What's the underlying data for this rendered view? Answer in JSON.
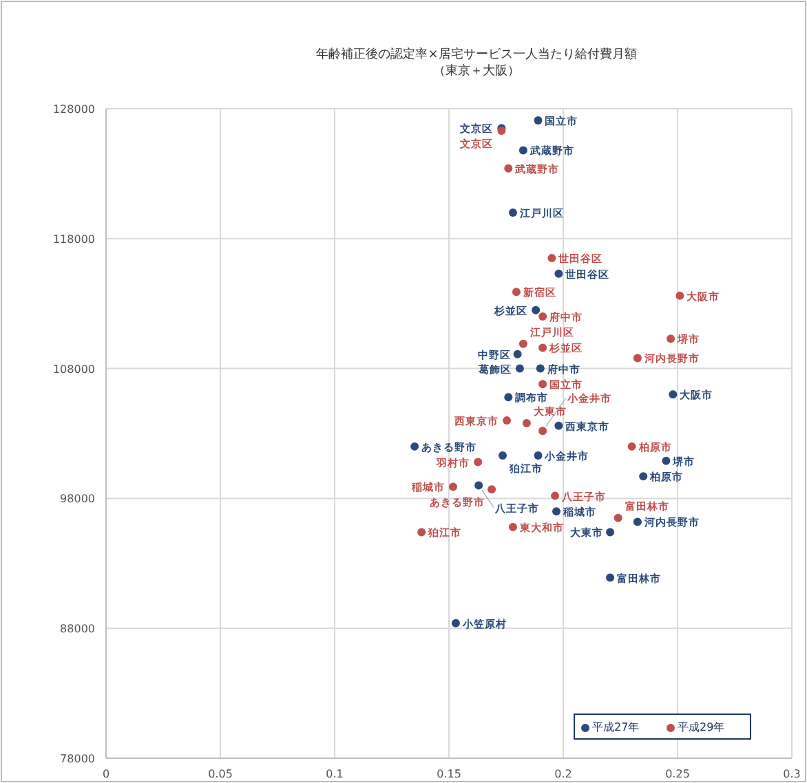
{
  "chart_data": {
    "type": "scatter",
    "title": "年齢補正後の認定率×居宅サービス一人当たり給付費月額",
    "subtitle": "（東京＋大阪）",
    "series": [
      {
        "name": "平成27年",
        "color": "#2b4a7a",
        "x": [
          0.189,
          0.173,
          0.1825,
          0.178,
          0.198,
          0.188,
          0.18,
          0.181,
          0.19,
          0.248,
          0.176,
          0.198,
          0.189,
          0.1735,
          0.135,
          0.245,
          0.235,
          0.163,
          0.2325,
          0.2205,
          0.2205,
          0.153,
          0.197
        ],
        "values": [
          127100,
          126500,
          124800,
          120000,
          115300,
          112500,
          109100,
          108000,
          108000,
          106000,
          105800,
          103600,
          101300,
          101300,
          102000,
          100900,
          99700,
          99000,
          96200,
          95400,
          91900,
          88400,
          97000
        ],
        "value_labels": [
          "国立市",
          "文京区",
          "武蔵野市",
          "江戸川区",
          "世田谷区",
          "杉並区",
          "中野区",
          "葛飾区",
          "府中市",
          "大阪市",
          "調布市",
          "西東京市",
          "小金井市",
          "狛江市",
          "あきる野市",
          "堺市",
          "柏原市",
          "八王子市",
          "河内長野市",
          "大東市",
          "富田林市",
          "小笠原村",
          "稲城市"
        ]
      },
      {
        "name": "平成29年",
        "color": "#c0504d",
        "x": [
          0.173,
          0.176,
          0.195,
          0.1795,
          0.251,
          0.191,
          0.247,
          0.2325,
          0.191,
          0.1825,
          0.191,
          0.184,
          0.1753,
          0.191,
          0.23,
          0.1627,
          0.1518,
          0.1687,
          0.1964,
          0.224,
          0.138,
          0.178
        ],
        "values": [
          126300,
          123400,
          116500,
          113900,
          113600,
          112000,
          110300,
          108800,
          109600,
          109900,
          106800,
          103800,
          104000,
          103200,
          102000,
          100800,
          98900,
          98700,
          98200,
          96500,
          95400,
          95800
        ],
        "value_labels": [
          "文京区",
          "武蔵野市",
          "世田谷区",
          "新宿区",
          "大阪市",
          "府中市",
          "堺市",
          "河内長野市",
          "杉並区",
          "江戸川区",
          "国立市",
          "大東市",
          "西東京市",
          "小金井市",
          "柏原市",
          "羽村市",
          "稲城市",
          "あきる野市",
          "八王子市",
          "富田林市",
          "狛江市",
          "東大和市"
        ]
      }
    ],
    "xlim": [
      0,
      0.3
    ],
    "xticks": [
      0,
      0.05,
      0.1,
      0.15,
      0.2,
      0.25,
      0.3
    ],
    "ylim": [
      78000,
      128000
    ],
    "yticks": [
      78000,
      88000,
      98000,
      108000,
      118000,
      128000
    ],
    "grid": true,
    "legend": "bottom right",
    "marker": "circle"
  }
}
